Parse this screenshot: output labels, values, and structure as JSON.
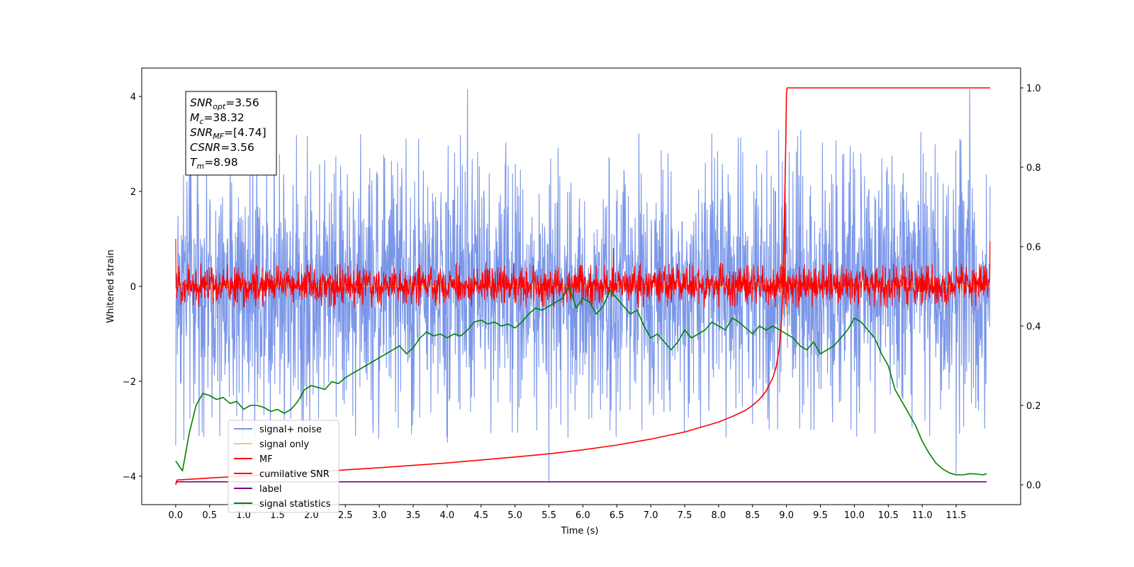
{
  "chart_data": {
    "type": "line",
    "title": "",
    "xlabel": "Time (s)",
    "ylabel": "Whitened strain",
    "y2label": "",
    "xlim": [
      -0.5,
      12.45
    ],
    "ylim": [
      -4.6,
      4.6
    ],
    "y2lim": [
      -0.05,
      1.05
    ],
    "x_ticks": [
      0.0,
      0.5,
      1.0,
      1.5,
      2.0,
      2.5,
      3.0,
      3.5,
      4.0,
      4.5,
      5.0,
      5.5,
      6.0,
      6.5,
      7.0,
      7.5,
      8.0,
      8.5,
      9.0,
      9.5,
      10.0,
      10.5,
      11.0,
      11.5
    ],
    "x_tick_labels": [
      "0.0",
      "0.5",
      "1.0",
      "1.5",
      "2.0",
      "2.5",
      "3.0",
      "3.5",
      "4.0",
      "4.5",
      "5.0",
      "5.5",
      "6.0",
      "6.5",
      "7.0",
      "7.5",
      "8.0",
      "8.5",
      "9.0",
      "9.5",
      "10.0",
      "10.5",
      "11.0",
      "11.5"
    ],
    "y_ticks": [
      -4,
      -2,
      0,
      2,
      4
    ],
    "y_tick_labels": [
      "−4",
      "−2",
      "0",
      "2",
      "4"
    ],
    "y2_ticks": [
      0.0,
      0.2,
      0.4,
      0.6,
      0.8,
      1.0
    ],
    "y2_tick_labels": [
      "0.0",
      "0.2",
      "0.4",
      "0.6",
      "0.8",
      "1.0"
    ],
    "grid": false,
    "legend_position": "bottom-left",
    "annotation": [
      {
        "main": "SNR",
        "sub": "opt",
        "value": "=3.56"
      },
      {
        "main": "M",
        "sub": "c",
        "value": "=38.32"
      },
      {
        "main": "SNR",
        "sub": "MF",
        "value": "=[4.74]"
      },
      {
        "main": "CSNR",
        "sub": "",
        "value": "=3.56"
      },
      {
        "main": "T",
        "sub": "m",
        "value": "=8.98"
      }
    ],
    "series": [
      {
        "name": "signal+ noise",
        "color": "#7a96e8",
        "axis": "left",
        "kind": "noise",
        "x_range": [
          0.0,
          12.0
        ],
        "approx_range": [
          -3.3,
          3.3
        ],
        "peaks": [
          {
            "x": 4.3,
            "y": 4.15
          },
          {
            "x": 11.7,
            "y": 4.15
          },
          {
            "x": 5.5,
            "y": -4.1
          },
          {
            "x": 11.5,
            "y": -3.95
          },
          {
            "x": 0.0,
            "y": 2.55
          },
          {
            "x": 0.0,
            "y": -3.35
          }
        ]
      },
      {
        "name": "signal only",
        "color": "#f5c97a",
        "axis": "left",
        "kind": "burst",
        "x": [
          0.0,
          8.5,
          8.8,
          8.9,
          8.95,
          8.98,
          9.0,
          9.03,
          12.0
        ],
        "y": [
          0.0,
          0.0,
          0.1,
          -0.2,
          0.5,
          0.9,
          -0.6,
          0.0,
          0.0
        ]
      },
      {
        "name": "MF",
        "color": "#ff0000",
        "axis": "left",
        "kind": "noise",
        "x_range": [
          0.0,
          12.0
        ],
        "approx_range": [
          -0.35,
          0.6
        ],
        "peaks": [
          {
            "x": 0.0,
            "y": 1.0
          },
          {
            "x": 12.0,
            "y": 0.95
          },
          {
            "x": 8.98,
            "y": 2.45
          },
          {
            "x": 6.45,
            "y": 0.8
          }
        ]
      },
      {
        "name": "cumilative SNR",
        "color": "#ff0000",
        "axis": "right",
        "x": [
          0.0,
          0.02,
          0.5,
          1.0,
          2.0,
          3.0,
          4.0,
          5.0,
          5.5,
          6.0,
          6.5,
          7.0,
          7.5,
          8.0,
          8.2,
          8.4,
          8.5,
          8.6,
          8.7,
          8.8,
          8.85,
          8.9,
          8.93,
          8.95,
          8.97,
          8.99,
          9.0,
          9.01,
          12.0
        ],
        "y": [
          0.0,
          0.012,
          0.017,
          0.022,
          0.032,
          0.043,
          0.055,
          0.07,
          0.078,
          0.088,
          0.1,
          0.115,
          0.133,
          0.158,
          0.172,
          0.188,
          0.2,
          0.215,
          0.236,
          0.27,
          0.298,
          0.35,
          0.42,
          0.52,
          0.68,
          0.86,
          0.985,
          1.0,
          1.0
        ]
      },
      {
        "name": "label",
        "color": "#800080",
        "axis": "left",
        "x": [
          0.0,
          11.95
        ],
        "y": [
          -4.12,
          -4.12
        ]
      },
      {
        "name": "signal statistics",
        "color": "#008000",
        "axis": "right",
        "x": [
          0.0,
          0.1,
          0.2,
          0.3,
          0.4,
          0.5,
          0.6,
          0.7,
          0.8,
          0.9,
          1.0,
          1.1,
          1.2,
          1.3,
          1.4,
          1.5,
          1.6,
          1.7,
          1.8,
          1.9,
          2.0,
          2.1,
          2.2,
          2.3,
          2.4,
          2.5,
          2.6,
          2.7,
          2.8,
          2.9,
          3.0,
          3.1,
          3.2,
          3.3,
          3.4,
          3.5,
          3.6,
          3.7,
          3.8,
          3.9,
          4.0,
          4.1,
          4.2,
          4.3,
          4.4,
          4.5,
          4.6,
          4.7,
          4.8,
          4.9,
          5.0,
          5.1,
          5.2,
          5.3,
          5.4,
          5.5,
          5.6,
          5.7,
          5.8,
          5.9,
          6.0,
          6.1,
          6.2,
          6.3,
          6.4,
          6.5,
          6.6,
          6.7,
          6.8,
          6.9,
          7.0,
          7.1,
          7.2,
          7.3,
          7.4,
          7.5,
          7.6,
          7.7,
          7.8,
          7.9,
          8.0,
          8.1,
          8.2,
          8.3,
          8.4,
          8.5,
          8.6,
          8.7,
          8.8,
          8.9,
          9.0,
          9.1,
          9.2,
          9.3,
          9.4,
          9.5,
          9.6,
          9.7,
          9.8,
          9.9,
          10.0,
          10.1,
          10.2,
          10.3,
          10.4,
          10.5,
          10.6,
          10.7,
          10.8,
          10.9,
          11.0,
          11.1,
          11.2,
          11.3,
          11.4,
          11.5,
          11.6,
          11.7,
          11.8,
          11.9,
          11.95
        ],
        "y": [
          0.06,
          0.035,
          0.13,
          0.2,
          0.23,
          0.225,
          0.215,
          0.22,
          0.205,
          0.21,
          0.19,
          0.2,
          0.2,
          0.195,
          0.185,
          0.19,
          0.18,
          0.19,
          0.21,
          0.24,
          0.25,
          0.245,
          0.24,
          0.26,
          0.255,
          0.27,
          0.28,
          0.29,
          0.3,
          0.31,
          0.32,
          0.33,
          0.34,
          0.35,
          0.33,
          0.345,
          0.37,
          0.385,
          0.375,
          0.38,
          0.37,
          0.38,
          0.375,
          0.39,
          0.41,
          0.415,
          0.405,
          0.41,
          0.4,
          0.405,
          0.395,
          0.41,
          0.43,
          0.445,
          0.44,
          0.45,
          0.46,
          0.47,
          0.5,
          0.445,
          0.47,
          0.46,
          0.43,
          0.45,
          0.49,
          0.47,
          0.45,
          0.43,
          0.44,
          0.4,
          0.37,
          0.38,
          0.36,
          0.34,
          0.36,
          0.39,
          0.37,
          0.38,
          0.39,
          0.41,
          0.4,
          0.39,
          0.42,
          0.41,
          0.395,
          0.38,
          0.4,
          0.39,
          0.4,
          0.39,
          0.38,
          0.37,
          0.35,
          0.34,
          0.36,
          0.33,
          0.34,
          0.35,
          0.37,
          0.39,
          0.42,
          0.41,
          0.39,
          0.37,
          0.33,
          0.3,
          0.24,
          0.21,
          0.18,
          0.15,
          0.11,
          0.08,
          0.055,
          0.04,
          0.03,
          0.025,
          0.025,
          0.028,
          0.027,
          0.025,
          0.028
        ]
      }
    ]
  }
}
